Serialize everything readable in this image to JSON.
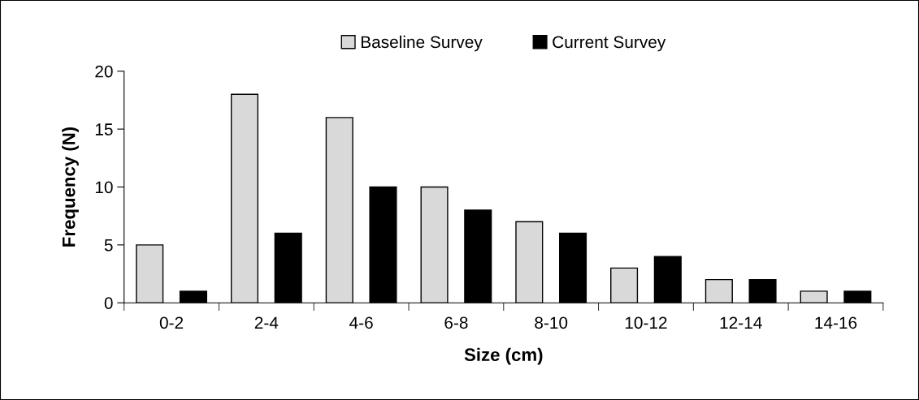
{
  "chart_data": {
    "type": "bar",
    "xlabel": "Size (cm)",
    "ylabel": "Frequency (N)",
    "categories": [
      "0-2",
      "2-4",
      "4-6",
      "6-8",
      "8-10",
      "10-12",
      "12-14",
      "14-16"
    ],
    "series": [
      {
        "name": "Baseline Survey",
        "color": "#d9d9d9",
        "values": [
          5,
          18,
          16,
          10,
          7,
          3,
          2,
          1
        ]
      },
      {
        "name": "Current Survey",
        "color": "#000000",
        "values": [
          1,
          6,
          10,
          8,
          6,
          4,
          2,
          1
        ]
      }
    ],
    "ylim": [
      0,
      20
    ],
    "yticks": [
      0,
      5,
      10,
      15,
      20
    ],
    "grid": false,
    "legend": "top"
  }
}
